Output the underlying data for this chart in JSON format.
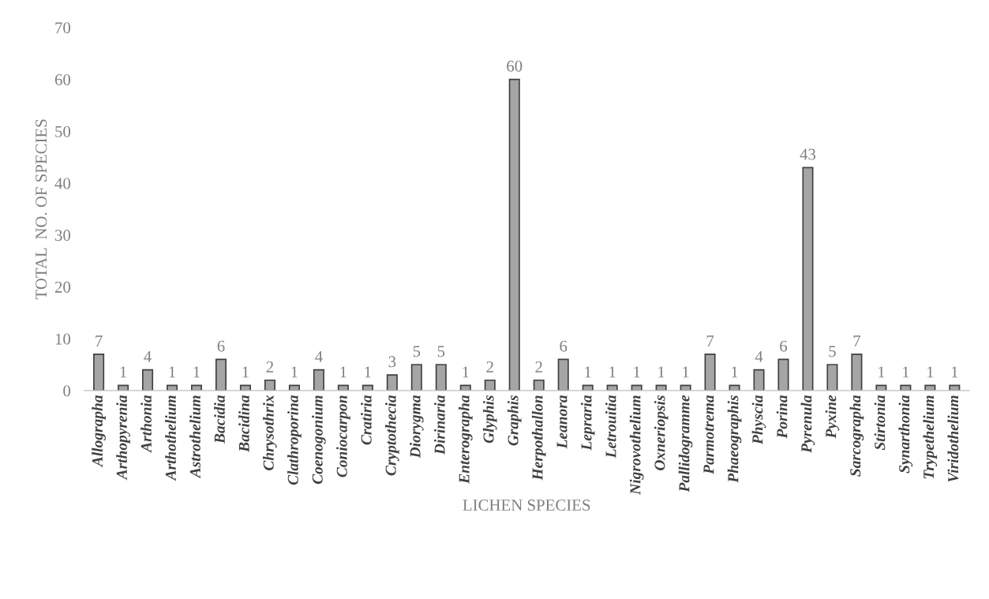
{
  "chart_data": {
    "type": "bar",
    "xlabel": "LICHEN SPECIES",
    "ylabel": "TOTAL  NO. OF SPECIES",
    "categories": [
      "Allographa",
      "Arthopyrenia",
      "Arthonia",
      "Arthothelium",
      "Astrothelium",
      "Bacidia",
      "Bacidina",
      "Chrysothrix",
      "Clathroporina",
      "Coenogonium",
      "Coniocarpon",
      "Cratiria",
      "Cryptothecia",
      "Diorygma",
      "Dirinaria",
      "Enterographa",
      "Glyphis",
      "Graphis",
      "Herpothallon",
      "Leanora",
      "Lepraria",
      "Letrouitia",
      "Nigrovothelium",
      "Oxneriopsis",
      "Pallidogramme",
      "Parmotrema",
      "Phaeographis",
      "Physcia",
      "Porina",
      "Pyrenula",
      "Pyxine",
      "Sarcographa",
      "Stirtonia",
      "Synarthonia",
      "Trypethelium",
      "Viridothelium"
    ],
    "values": [
      7,
      1,
      4,
      1,
      1,
      6,
      1,
      2,
      1,
      4,
      1,
      1,
      3,
      5,
      5,
      1,
      2,
      60,
      2,
      6,
      1,
      1,
      1,
      1,
      1,
      7,
      1,
      4,
      6,
      43,
      5,
      7,
      1,
      1,
      1,
      1
    ],
    "color": "#a5a5a5",
    "ylim": [
      0,
      70
    ],
    "yticks": [
      0,
      10,
      20,
      30,
      40,
      50,
      60,
      70
    ],
    "grid": false,
    "data_labels": true
  }
}
